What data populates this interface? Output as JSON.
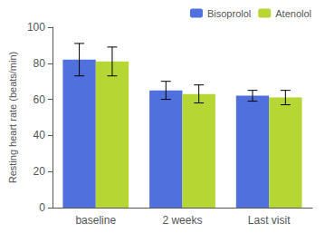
{
  "chart_data": {
    "type": "bar",
    "categories": [
      "baseline",
      "2 weeks",
      "Last visit"
    ],
    "series": [
      {
        "name": "Bisoprolol",
        "values": [
          82,
          65,
          62
        ],
        "errors": [
          9,
          5,
          3
        ]
      },
      {
        "name": "Atenolol",
        "values": [
          81,
          63,
          61
        ],
        "errors": [
          8,
          5,
          4
        ]
      }
    ],
    "ylabel": "Resting heart rate (beats/min)",
    "ylim": [
      0,
      100
    ],
    "yticks": [
      0,
      20,
      40,
      60,
      80,
      100
    ],
    "grid": false,
    "legend": "upper right"
  }
}
